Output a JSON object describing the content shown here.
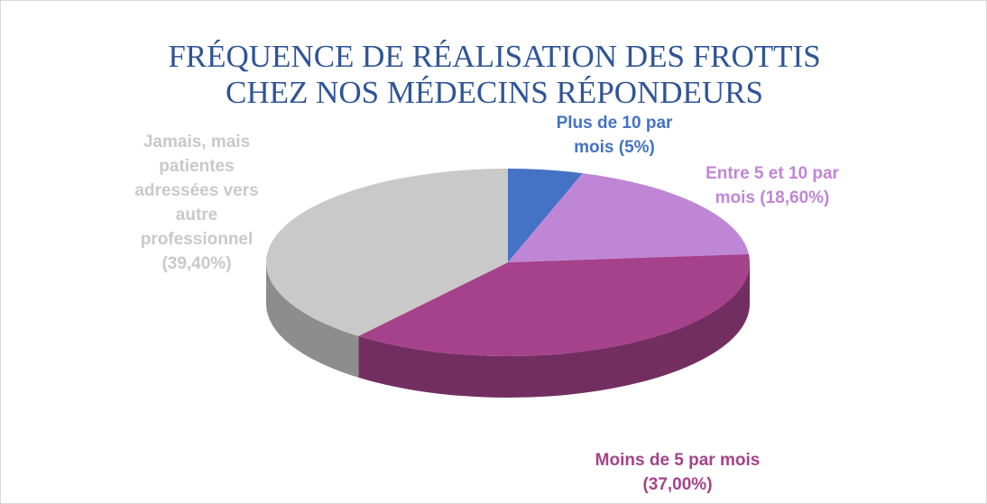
{
  "chart_data": {
    "type": "pie",
    "title": "FRÉQUENCE DE RÉALISATION DES FROTTIS CHEZ NOS MÉDECINS RÉPONDEURS",
    "categories": [
      "Plus de 10 par mois",
      "Entre 5 et 10 par mois",
      "Moins de 5 par mois",
      "Jamais, mais patientes adressées vers autre professionnel"
    ],
    "values": [
      5,
      18.6,
      37,
      39.4
    ],
    "value_labels": [
      "(5%)",
      "(18,60%)",
      "(37,00%)",
      "(39,40%)"
    ],
    "colors": [
      "#4472c4",
      "#c086d6",
      "#a5428b",
      "#c9c9c9"
    ]
  }
}
